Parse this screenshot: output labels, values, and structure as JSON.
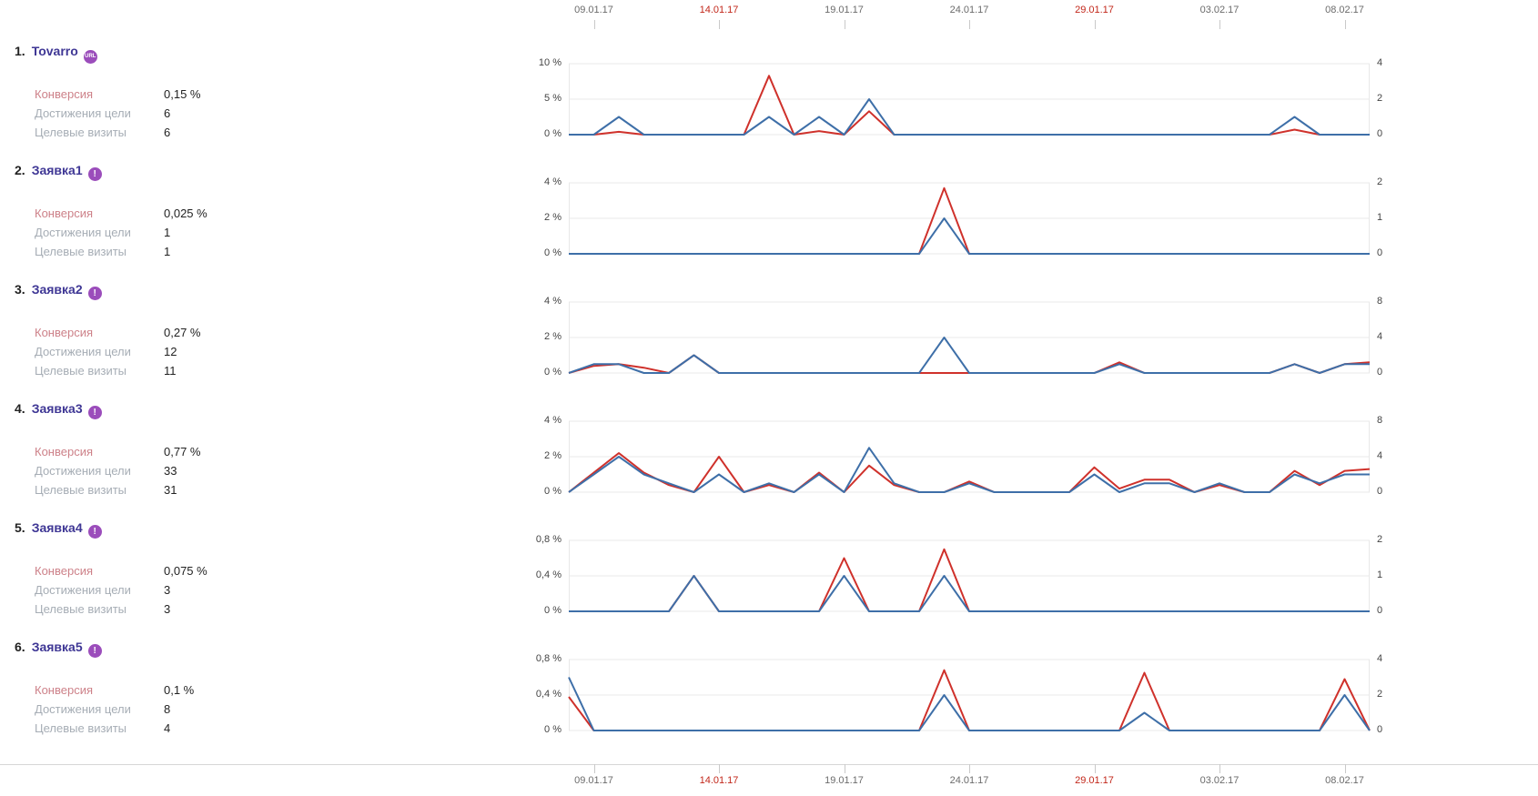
{
  "colors": {
    "conversion_line": "#cf312b",
    "reaches_line": "#3e6fa8",
    "weekend_date": "#c2271a",
    "date": "#6b6b6b",
    "goal_name": "#3f3795",
    "badge": "#9b4dbb",
    "conversion_label": "#cd8189",
    "stat_label": "#a6adb5",
    "grid": "#e8e8e8"
  },
  "axis": {
    "dates": [
      {
        "label": "09.01.17",
        "day": 1,
        "weekend": false
      },
      {
        "label": "14.01.17",
        "day": 6,
        "weekend": true
      },
      {
        "label": "19.01.17",
        "day": 11,
        "weekend": false
      },
      {
        "label": "24.01.17",
        "day": 16,
        "weekend": false
      },
      {
        "label": "29.01.17",
        "day": 21,
        "weekend": true
      },
      {
        "label": "03.02.17",
        "day": 26,
        "weekend": false
      },
      {
        "label": "08.02.17",
        "day": 31,
        "weekend": false
      }
    ]
  },
  "goals": [
    {
      "index": "1.",
      "name": "Tovarro",
      "badge_text": "URL",
      "badge_type": "url",
      "stats": [
        {
          "label": "Конверсия",
          "value": "0,15 %",
          "kind": "conversion"
        },
        {
          "label": "Достижения цели",
          "value": "6",
          "kind": "reaches"
        },
        {
          "label": "Целевые визиты",
          "value": "6",
          "kind": "visits"
        }
      ]
    },
    {
      "index": "2.",
      "name": "Заявка1",
      "badge_text": "!",
      "badge_type": "event",
      "stats": [
        {
          "label": "Конверсия",
          "value": "0,025 %",
          "kind": "conversion"
        },
        {
          "label": "Достижения цели",
          "value": "1",
          "kind": "reaches"
        },
        {
          "label": "Целевые визиты",
          "value": "1",
          "kind": "visits"
        }
      ]
    },
    {
      "index": "3.",
      "name": "Заявка2",
      "badge_text": "!",
      "badge_type": "event",
      "stats": [
        {
          "label": "Конверсия",
          "value": "0,27 %",
          "kind": "conversion"
        },
        {
          "label": "Достижения цели",
          "value": "12",
          "kind": "reaches"
        },
        {
          "label": "Целевые визиты",
          "value": "11",
          "kind": "visits"
        }
      ]
    },
    {
      "index": "4.",
      "name": "Заявка3",
      "badge_text": "!",
      "badge_type": "event",
      "stats": [
        {
          "label": "Конверсия",
          "value": "0,77 %",
          "kind": "conversion"
        },
        {
          "label": "Достижения цели",
          "value": "33",
          "kind": "reaches"
        },
        {
          "label": "Целевые визиты",
          "value": "31",
          "kind": "visits"
        }
      ]
    },
    {
      "index": "5.",
      "name": "Заявка4",
      "badge_text": "!",
      "badge_type": "event",
      "stats": [
        {
          "label": "Конверсия",
          "value": "0,075 %",
          "kind": "conversion"
        },
        {
          "label": "Достижения цели",
          "value": "3",
          "kind": "reaches"
        },
        {
          "label": "Целевые визиты",
          "value": "3",
          "kind": "visits"
        }
      ]
    },
    {
      "index": "6.",
      "name": "Заявка5",
      "badge_text": "!",
      "badge_type": "event",
      "stats": [
        {
          "label": "Конверсия",
          "value": "0,1 %",
          "kind": "conversion"
        },
        {
          "label": "Достижения цели",
          "value": "8",
          "kind": "reaches"
        },
        {
          "label": "Целевые визиты",
          "value": "4",
          "kind": "visits"
        }
      ]
    }
  ],
  "chart_data": [
    {
      "type": "line",
      "title": "Tovarro",
      "x_start": "08.01.17",
      "x_end": "09.02.17",
      "x_points": 33,
      "left_axis": {
        "ticks": [
          "10 %",
          "5 %",
          "0 %"
        ],
        "max": 10,
        "unit": "%"
      },
      "right_axis": {
        "ticks": [
          "4",
          "2",
          "0"
        ],
        "max": 4
      },
      "series": [
        {
          "name": "Конверсия",
          "axis": "left",
          "values": [
            0,
            0,
            0.4,
            0,
            0,
            0,
            0,
            0,
            8.3,
            0,
            0.5,
            0,
            3.3,
            0,
            0,
            0,
            0,
            0,
            0,
            0,
            0,
            0,
            0,
            0,
            0,
            0,
            0,
            0,
            0,
            0.7,
            0,
            0,
            0
          ]
        },
        {
          "name": "Достижения цели",
          "axis": "right",
          "values": [
            0,
            0,
            1,
            0,
            0,
            0,
            0,
            0,
            1,
            0,
            1,
            0,
            2,
            0,
            0,
            0,
            0,
            0,
            0,
            0,
            0,
            0,
            0,
            0,
            0,
            0,
            0,
            0,
            0,
            1,
            0,
            0,
            0
          ]
        }
      ]
    },
    {
      "type": "line",
      "title": "Заявка1",
      "x_start": "08.01.17",
      "x_end": "09.02.17",
      "x_points": 33,
      "left_axis": {
        "ticks": [
          "4 %",
          "2 %",
          "0 %"
        ],
        "max": 4,
        "unit": "%"
      },
      "right_axis": {
        "ticks": [
          "2",
          "1",
          "0"
        ],
        "max": 2
      },
      "series": [
        {
          "name": "Конверсия",
          "axis": "left",
          "values": [
            0,
            0,
            0,
            0,
            0,
            0,
            0,
            0,
            0,
            0,
            0,
            0,
            0,
            0,
            0,
            3.7,
            0,
            0,
            0,
            0,
            0,
            0,
            0,
            0,
            0,
            0,
            0,
            0,
            0,
            0,
            0,
            0,
            0
          ]
        },
        {
          "name": "Достижения цели",
          "axis": "right",
          "values": [
            0,
            0,
            0,
            0,
            0,
            0,
            0,
            0,
            0,
            0,
            0,
            0,
            0,
            0,
            0,
            1,
            0,
            0,
            0,
            0,
            0,
            0,
            0,
            0,
            0,
            0,
            0,
            0,
            0,
            0,
            0,
            0,
            0
          ]
        }
      ]
    },
    {
      "type": "line",
      "title": "Заявка2",
      "x_start": "08.01.17",
      "x_end": "09.02.17",
      "x_points": 33,
      "left_axis": {
        "ticks": [
          "4 %",
          "2 %",
          "0 %"
        ],
        "max": 4,
        "unit": "%"
      },
      "right_axis": {
        "ticks": [
          "8",
          "4",
          "0"
        ],
        "max": 8
      },
      "series": [
        {
          "name": "Конверсия",
          "axis": "left",
          "values": [
            0,
            0.4,
            0.5,
            0.3,
            0,
            1,
            0,
            0,
            0,
            0,
            0,
            0,
            0,
            0,
            0,
            0,
            0,
            0,
            0,
            0,
            0,
            0,
            0.6,
            0,
            0,
            0,
            0,
            0,
            0,
            0.5,
            0,
            0.5,
            0.6
          ]
        },
        {
          "name": "Достижения цели",
          "axis": "right",
          "values": [
            0,
            1,
            1,
            0,
            0,
            2,
            0,
            0,
            0,
            0,
            0,
            0,
            0,
            0,
            0,
            4,
            0,
            0,
            0,
            0,
            0,
            0,
            1,
            0,
            0,
            0,
            0,
            0,
            0,
            1,
            0,
            1,
            1
          ]
        }
      ]
    },
    {
      "type": "line",
      "title": "Заявка3",
      "x_start": "08.01.17",
      "x_end": "09.02.17",
      "x_points": 33,
      "left_axis": {
        "ticks": [
          "4 %",
          "2 %",
          "0 %"
        ],
        "max": 4,
        "unit": "%"
      },
      "right_axis": {
        "ticks": [
          "8",
          "4",
          "0"
        ],
        "max": 8
      },
      "series": [
        {
          "name": "Конверсия",
          "axis": "left",
          "values": [
            0,
            1.1,
            2.2,
            1.1,
            0.4,
            0,
            2,
            0,
            0.4,
            0,
            1.1,
            0,
            1.5,
            0.4,
            0,
            0,
            0.6,
            0,
            0,
            0,
            0,
            1.4,
            0.2,
            0.7,
            0.7,
            0,
            0.4,
            0,
            0,
            1.2,
            0.4,
            1.2,
            1.3
          ]
        },
        {
          "name": "Достижения цели",
          "axis": "right",
          "values": [
            0,
            2,
            4,
            2,
            1,
            0,
            2,
            0,
            1,
            0,
            2,
            0,
            5,
            1,
            0,
            0,
            1,
            0,
            0,
            0,
            0,
            2,
            0,
            1,
            1,
            0,
            1,
            0,
            0,
            2,
            1,
            2,
            2
          ]
        }
      ]
    },
    {
      "type": "line",
      "title": "Заявка4",
      "x_start": "08.01.17",
      "x_end": "09.02.17",
      "x_points": 33,
      "left_axis": {
        "ticks": [
          "0,8 %",
          "0,4 %",
          "0 %"
        ],
        "max": 0.8,
        "unit": "%"
      },
      "right_axis": {
        "ticks": [
          "2",
          "1",
          "0"
        ],
        "max": 2
      },
      "series": [
        {
          "name": "Конверсия",
          "axis": "left",
          "values": [
            0,
            0,
            0,
            0,
            0,
            0.4,
            0,
            0,
            0,
            0,
            0,
            0.6,
            0,
            0,
            0,
            0.7,
            0,
            0,
            0,
            0,
            0,
            0,
            0,
            0,
            0,
            0,
            0,
            0,
            0,
            0,
            0,
            0,
            0
          ]
        },
        {
          "name": "Достижения цели",
          "axis": "right",
          "values": [
            0,
            0,
            0,
            0,
            0,
            1,
            0,
            0,
            0,
            0,
            0,
            1,
            0,
            0,
            0,
            1,
            0,
            0,
            0,
            0,
            0,
            0,
            0,
            0,
            0,
            0,
            0,
            0,
            0,
            0,
            0,
            0,
            0
          ]
        }
      ]
    },
    {
      "type": "line",
      "title": "Заявка5",
      "x_start": "08.01.17",
      "x_end": "09.02.17",
      "x_points": 33,
      "left_axis": {
        "ticks": [
          "0,8 %",
          "0,4 %",
          "0 %"
        ],
        "max": 0.8,
        "unit": "%"
      },
      "right_axis": {
        "ticks": [
          "4",
          "2",
          "0"
        ],
        "max": 4
      },
      "series": [
        {
          "name": "Конверсия",
          "axis": "left",
          "values": [
            0.38,
            0,
            0,
            0,
            0,
            0,
            0,
            0,
            0,
            0,
            0,
            0,
            0,
            0,
            0,
            0.68,
            0,
            0,
            0,
            0,
            0,
            0,
            0,
            0.65,
            0,
            0,
            0,
            0,
            0,
            0,
            0,
            0.58,
            0
          ]
        },
        {
          "name": "Достижения цели",
          "axis": "right",
          "values": [
            3,
            0,
            0,
            0,
            0,
            0,
            0,
            0,
            0,
            0,
            0,
            0,
            0,
            0,
            0,
            2,
            0,
            0,
            0,
            0,
            0,
            0,
            0,
            1,
            0,
            0,
            0,
            0,
            0,
            0,
            0,
            2,
            0
          ]
        }
      ]
    }
  ]
}
